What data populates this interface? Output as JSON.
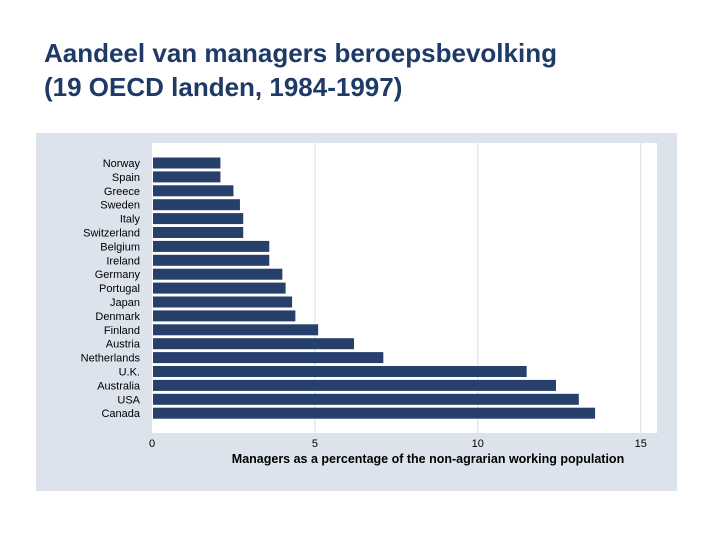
{
  "slide": {
    "title_line1": "Aandeel van managers beroepsbevolking",
    "title_line2": "(19 OECD landen, 1984-1997)"
  },
  "colors": {
    "bar": "#27406b",
    "panel": "#dce3ec",
    "plot_bg": "#ffffff",
    "grid": "#dce3ec",
    "title": "#1f3a66"
  },
  "chart_data": {
    "type": "bar",
    "orientation": "horizontal",
    "title": "",
    "xlabel": "Managers as a percentage of the non-agrarian working population",
    "ylabel": "",
    "xlim": [
      0,
      15.5
    ],
    "xticks": [
      0,
      5,
      10,
      15
    ],
    "grid": true,
    "categories": [
      "Norway",
      "Spain",
      "Greece",
      "Sweden",
      "Italy",
      "Switzerland",
      "Belgium",
      "Ireland",
      "Germany",
      "Portugal",
      "Japan",
      "Denmark",
      "Finland",
      "Austria",
      "Netherlands",
      "U.K.",
      "Australia",
      "USA",
      "Canada"
    ],
    "values": [
      2.1,
      2.1,
      2.5,
      2.7,
      2.8,
      2.8,
      3.6,
      3.6,
      4.0,
      4.1,
      4.3,
      4.4,
      5.1,
      6.2,
      7.1,
      11.5,
      12.4,
      13.1,
      13.6
    ]
  }
}
